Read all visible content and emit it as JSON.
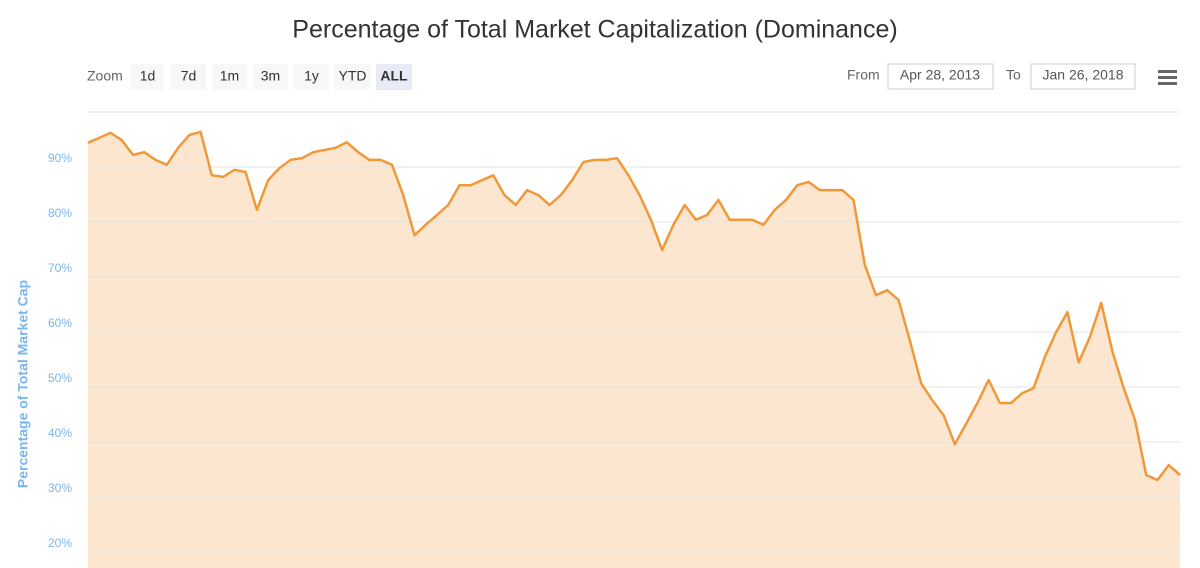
{
  "chart_data": {
    "type": "area",
    "title": "Percentage of Total Market Capitalization (Dominance)",
    "y_axis_label": "Percentage of Total Market Cap",
    "range_selector": {
      "zoom_label": "Zoom",
      "buttons": [
        "1d",
        "7d",
        "1m",
        "3m",
        "1y",
        "YTD",
        "ALL"
      ],
      "selected": 6,
      "from_label": "From",
      "from": "Apr 28, 2013",
      "to_label": "To",
      "to": "Jan 26, 2018"
    },
    "ylim": [
      17.1,
      100
    ],
    "yticks": [
      {
        "value": 20,
        "label": "20%"
      },
      {
        "value": 30,
        "label": "30%"
      },
      {
        "value": 40,
        "label": "40%"
      },
      {
        "value": 50,
        "label": "50%"
      },
      {
        "value": 60,
        "label": "60%"
      },
      {
        "value": 70,
        "label": "70%"
      },
      {
        "value": 80,
        "label": "80%"
      },
      {
        "value": 90,
        "label": "90%"
      }
    ],
    "grid": true,
    "color": "#f0993b",
    "fill": "#fce6cf",
    "values": [
      94.4,
      95.3,
      96.2,
      94.9,
      92.2,
      92.7,
      91.3,
      90.4,
      93.5,
      95.8,
      96.4,
      88.5,
      88.2,
      89.5,
      89.1,
      82.2,
      87.6,
      89.8,
      91.3,
      91.6,
      92.7,
      93.1,
      93.5,
      94.5,
      92.7,
      91.3,
      91.3,
      90.4,
      84.9,
      77.6,
      79.5,
      81.3,
      83.1,
      86.7,
      86.7,
      87.6,
      88.5,
      84.9,
      83.1,
      85.8,
      84.9,
      83.1,
      84.9,
      87.6,
      90.9,
      91.3,
      91.3,
      91.6,
      88.5,
      84.9,
      80.4,
      74.9,
      79.5,
      83.1,
      80.4,
      81.3,
      84.0,
      80.4,
      80.4,
      80.4,
      79.5,
      82.2,
      84.0,
      86.7,
      87.3,
      85.8,
      85.8,
      85.8,
      84.0,
      72.2,
      66.7,
      67.6,
      65.8,
      58.5,
      50.7,
      47.6,
      44.9,
      39.6,
      43.3,
      47.1,
      51.3,
      47.1,
      47.1,
      48.9,
      49.8,
      55.5,
      60.0,
      63.6,
      54.5,
      59.1,
      65.3,
      56.4,
      49.8,
      44.0,
      34.0,
      33.1,
      35.8,
      34.0
    ]
  }
}
